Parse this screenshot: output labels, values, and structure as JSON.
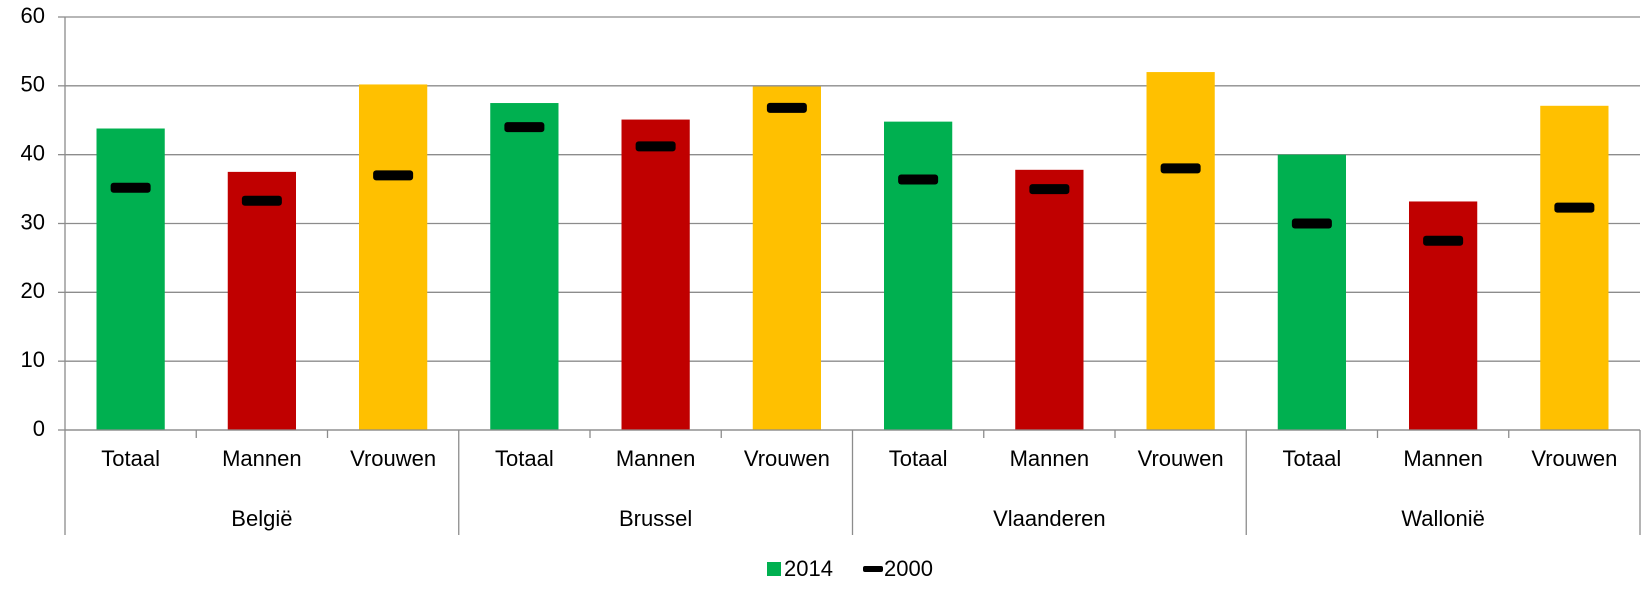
{
  "chart_data": {
    "type": "bar",
    "categories": [
      "Totaal",
      "Mannen",
      "Vrouwen",
      "Totaal",
      "Mannen",
      "Vrouwen",
      "Totaal",
      "Mannen",
      "Vrouwen",
      "Totaal",
      "Mannen",
      "Vrouwen"
    ],
    "groups": [
      "België",
      "Brussel",
      "Vlaanderen",
      "Wallonië"
    ],
    "series": [
      {
        "name": "2014",
        "color": "#00b050",
        "colors": [
          "#00b050",
          "#c00000",
          "#ffc000",
          "#00b050",
          "#c00000",
          "#ffc000",
          "#00b050",
          "#c00000",
          "#ffc000",
          "#00b050",
          "#c00000",
          "#ffc000"
        ],
        "values": [
          43.8,
          37.5,
          50.2,
          47.5,
          45.1,
          49.9,
          44.8,
          37.8,
          52.0,
          40.0,
          33.2,
          47.1
        ]
      },
      {
        "name": "2000",
        "color": "#000000",
        "marker": "dash",
        "values": [
          35.2,
          33.3,
          37.0,
          44.0,
          41.2,
          46.8,
          36.4,
          35.0,
          38.0,
          30.0,
          27.5,
          32.3
        ]
      }
    ],
    "ylim": [
      0,
      60
    ],
    "yticks": [
      0,
      10,
      20,
      30,
      40,
      50,
      60
    ],
    "grid": true,
    "legend": "bottom"
  }
}
